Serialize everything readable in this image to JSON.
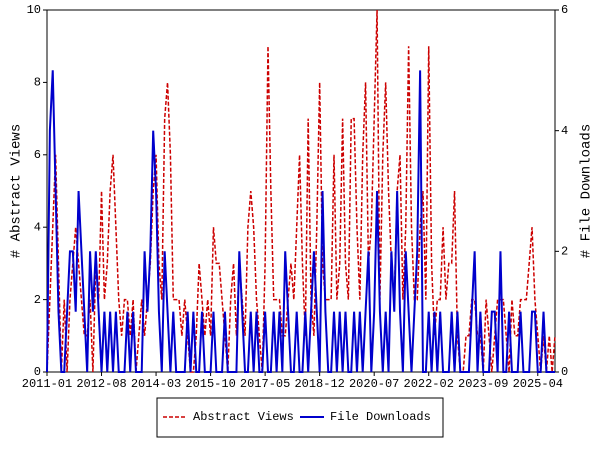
{
  "chart_data": {
    "type": "line",
    "categories": [
      "2011-01",
      null,
      null,
      null,
      null,
      null,
      null,
      null,
      null,
      null,
      null,
      null,
      null,
      null,
      null,
      null,
      null,
      null,
      null,
      "2012-08",
      null,
      null,
      null,
      null,
      null,
      null,
      null,
      null,
      null,
      null,
      null,
      null,
      null,
      null,
      null,
      null,
      null,
      null,
      "2014-03",
      null,
      null,
      null,
      null,
      null,
      null,
      null,
      null,
      null,
      null,
      null,
      null,
      null,
      null,
      null,
      null,
      null,
      null,
      "2015-10",
      null,
      null,
      null,
      null,
      null,
      null,
      null,
      null,
      null,
      null,
      null,
      null,
      null,
      null,
      null,
      null,
      null,
      null,
      "2017-05",
      null,
      null,
      null,
      null,
      null,
      null,
      null,
      null,
      null,
      null,
      null,
      null,
      null,
      null,
      null,
      null,
      null,
      null,
      "2018-12",
      null,
      null,
      null,
      null,
      null,
      null,
      null,
      null,
      null,
      null,
      null,
      null,
      null,
      null,
      null,
      null,
      null,
      null,
      "2020-07",
      null,
      null,
      null,
      null,
      null,
      null,
      null,
      null,
      null,
      null,
      null,
      null,
      null,
      null,
      null,
      null,
      null,
      null,
      "2022-02",
      null,
      null,
      null,
      null,
      null,
      null,
      null,
      null,
      null,
      null,
      null,
      null,
      null,
      null,
      null,
      null,
      null,
      null,
      "2023-09",
      null,
      null,
      null,
      null,
      null,
      null,
      null,
      null,
      null,
      null,
      null,
      null,
      null,
      null,
      null,
      null,
      null,
      null,
      "2025-04",
      null,
      null,
      null,
      null,
      null,
      null
    ],
    "series": [
      {
        "name": "Abstract Views",
        "color": "#cc0000",
        "dash": true,
        "values": [
          0,
          2,
          4,
          6,
          3,
          0,
          2,
          0,
          2,
          3,
          4,
          3,
          2,
          1,
          1,
          2,
          0,
          3,
          2,
          5,
          2,
          3,
          5,
          6,
          4,
          2,
          1,
          2,
          2,
          1,
          2,
          0,
          1,
          2,
          1,
          2,
          3,
          5,
          6,
          3,
          2,
          7,
          8,
          6,
          2,
          2,
          2,
          1,
          2,
          1,
          0,
          0,
          1,
          3,
          2,
          1,
          2,
          1,
          4,
          3,
          3,
          2,
          1,
          0,
          2,
          3,
          1,
          3,
          2,
          1,
          4,
          5,
          4,
          2,
          1,
          0,
          3,
          9,
          5,
          2,
          2,
          2,
          1,
          1,
          2,
          3,
          2,
          4,
          6,
          3,
          1,
          7,
          2,
          1,
          4,
          8,
          3,
          2,
          2,
          2,
          6,
          2,
          3,
          7,
          3,
          2,
          7,
          7,
          4,
          2,
          6,
          8,
          3,
          4,
          7,
          10,
          2,
          6,
          8,
          5,
          3,
          2,
          5,
          6,
          2,
          4,
          9,
          4,
          2,
          2,
          4,
          5,
          2,
          9,
          3,
          1,
          2,
          2,
          4,
          2,
          3,
          3,
          5,
          1,
          0,
          0,
          1,
          1,
          2,
          2,
          1,
          1,
          0,
          2,
          1,
          0,
          1,
          2,
          2,
          2,
          1,
          0,
          2,
          1,
          1,
          2,
          2,
          2,
          3,
          4,
          2,
          1,
          0,
          1,
          0,
          1,
          0,
          1
        ]
      },
      {
        "name": "File Downloads",
        "color": "#0000cc",
        "dash": false,
        "axis": "y2",
        "values": [
          0,
          4,
          5,
          3,
          1,
          0,
          0,
          1,
          2,
          2,
          1,
          3,
          2,
          1,
          0,
          2,
          1,
          2,
          1,
          0,
          1,
          0,
          1,
          0,
          1,
          0,
          0,
          0,
          1,
          0,
          1,
          0,
          0,
          0,
          2,
          1,
          2,
          4,
          3,
          1,
          0,
          2,
          1,
          0,
          1,
          0,
          0,
          0,
          0,
          1,
          0,
          1,
          0,
          0,
          1,
          0,
          0,
          0,
          1,
          0,
          0,
          0,
          1,
          0,
          0,
          0,
          0,
          2,
          1,
          0,
          0,
          1,
          0,
          1,
          0,
          0,
          1,
          0,
          0,
          1,
          0,
          1,
          0,
          2,
          1,
          0,
          0,
          1,
          0,
          0,
          1,
          0,
          1,
          2,
          1,
          0,
          3,
          1,
          0,
          0,
          1,
          0,
          1,
          0,
          1,
          0,
          0,
          1,
          0,
          1,
          0,
          1,
          2,
          0,
          1,
          3,
          1,
          0,
          1,
          0,
          2,
          1,
          3,
          1,
          0,
          2,
          1,
          0,
          1,
          2,
          5,
          0,
          0,
          1,
          0,
          1,
          0,
          1,
          0,
          0,
          0,
          1,
          0,
          1,
          0,
          0,
          0,
          0,
          1,
          2,
          0,
          1,
          0,
          0,
          0,
          1,
          1,
          0,
          2,
          0,
          0,
          1,
          0,
          0,
          0,
          1,
          0,
          0,
          0,
          1,
          1,
          0,
          0,
          1,
          0,
          0,
          0,
          0
        ]
      }
    ],
    "ylabel": "# Abstract Views",
    "y2label": "# File Downloads",
    "ylim": [
      0,
      10
    ],
    "yticks": [
      0,
      2,
      4,
      6,
      8,
      10
    ],
    "y2lim": [
      0,
      6
    ],
    "y2ticks": [
      0,
      2,
      4,
      6
    ],
    "legend": "bottom"
  }
}
